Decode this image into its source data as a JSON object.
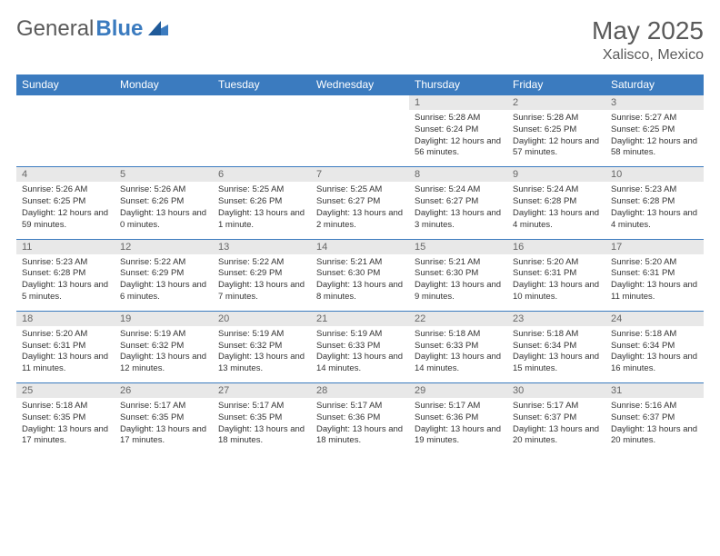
{
  "brand": {
    "part1": "General",
    "part2": "Blue"
  },
  "title": "May 2025",
  "location": "Xalisco, Mexico",
  "colors": {
    "header_bg": "#3b7bbf",
    "header_text": "#ffffff",
    "daynum_bg": "#e8e8e8",
    "border": "#3b7bbf",
    "text": "#333333",
    "muted": "#5a5a5a"
  },
  "day_names": [
    "Sunday",
    "Monday",
    "Tuesday",
    "Wednesday",
    "Thursday",
    "Friday",
    "Saturday"
  ],
  "weeks": [
    [
      {
        "n": "",
        "lines": []
      },
      {
        "n": "",
        "lines": []
      },
      {
        "n": "",
        "lines": []
      },
      {
        "n": "",
        "lines": []
      },
      {
        "n": "1",
        "lines": [
          "Sunrise: 5:28 AM",
          "Sunset: 6:24 PM",
          "Daylight: 12 hours and 56 minutes."
        ]
      },
      {
        "n": "2",
        "lines": [
          "Sunrise: 5:28 AM",
          "Sunset: 6:25 PM",
          "Daylight: 12 hours and 57 minutes."
        ]
      },
      {
        "n": "3",
        "lines": [
          "Sunrise: 5:27 AM",
          "Sunset: 6:25 PM",
          "Daylight: 12 hours and 58 minutes."
        ]
      }
    ],
    [
      {
        "n": "4",
        "lines": [
          "Sunrise: 5:26 AM",
          "Sunset: 6:25 PM",
          "Daylight: 12 hours and 59 minutes."
        ]
      },
      {
        "n": "5",
        "lines": [
          "Sunrise: 5:26 AM",
          "Sunset: 6:26 PM",
          "Daylight: 13 hours and 0 minutes."
        ]
      },
      {
        "n": "6",
        "lines": [
          "Sunrise: 5:25 AM",
          "Sunset: 6:26 PM",
          "Daylight: 13 hours and 1 minute."
        ]
      },
      {
        "n": "7",
        "lines": [
          "Sunrise: 5:25 AM",
          "Sunset: 6:27 PM",
          "Daylight: 13 hours and 2 minutes."
        ]
      },
      {
        "n": "8",
        "lines": [
          "Sunrise: 5:24 AM",
          "Sunset: 6:27 PM",
          "Daylight: 13 hours and 3 minutes."
        ]
      },
      {
        "n": "9",
        "lines": [
          "Sunrise: 5:24 AM",
          "Sunset: 6:28 PM",
          "Daylight: 13 hours and 4 minutes."
        ]
      },
      {
        "n": "10",
        "lines": [
          "Sunrise: 5:23 AM",
          "Sunset: 6:28 PM",
          "Daylight: 13 hours and 4 minutes."
        ]
      }
    ],
    [
      {
        "n": "11",
        "lines": [
          "Sunrise: 5:23 AM",
          "Sunset: 6:28 PM",
          "Daylight: 13 hours and 5 minutes."
        ]
      },
      {
        "n": "12",
        "lines": [
          "Sunrise: 5:22 AM",
          "Sunset: 6:29 PM",
          "Daylight: 13 hours and 6 minutes."
        ]
      },
      {
        "n": "13",
        "lines": [
          "Sunrise: 5:22 AM",
          "Sunset: 6:29 PM",
          "Daylight: 13 hours and 7 minutes."
        ]
      },
      {
        "n": "14",
        "lines": [
          "Sunrise: 5:21 AM",
          "Sunset: 6:30 PM",
          "Daylight: 13 hours and 8 minutes."
        ]
      },
      {
        "n": "15",
        "lines": [
          "Sunrise: 5:21 AM",
          "Sunset: 6:30 PM",
          "Daylight: 13 hours and 9 minutes."
        ]
      },
      {
        "n": "16",
        "lines": [
          "Sunrise: 5:20 AM",
          "Sunset: 6:31 PM",
          "Daylight: 13 hours and 10 minutes."
        ]
      },
      {
        "n": "17",
        "lines": [
          "Sunrise: 5:20 AM",
          "Sunset: 6:31 PM",
          "Daylight: 13 hours and 11 minutes."
        ]
      }
    ],
    [
      {
        "n": "18",
        "lines": [
          "Sunrise: 5:20 AM",
          "Sunset: 6:31 PM",
          "Daylight: 13 hours and 11 minutes."
        ]
      },
      {
        "n": "19",
        "lines": [
          "Sunrise: 5:19 AM",
          "Sunset: 6:32 PM",
          "Daylight: 13 hours and 12 minutes."
        ]
      },
      {
        "n": "20",
        "lines": [
          "Sunrise: 5:19 AM",
          "Sunset: 6:32 PM",
          "Daylight: 13 hours and 13 minutes."
        ]
      },
      {
        "n": "21",
        "lines": [
          "Sunrise: 5:19 AM",
          "Sunset: 6:33 PM",
          "Daylight: 13 hours and 14 minutes."
        ]
      },
      {
        "n": "22",
        "lines": [
          "Sunrise: 5:18 AM",
          "Sunset: 6:33 PM",
          "Daylight: 13 hours and 14 minutes."
        ]
      },
      {
        "n": "23",
        "lines": [
          "Sunrise: 5:18 AM",
          "Sunset: 6:34 PM",
          "Daylight: 13 hours and 15 minutes."
        ]
      },
      {
        "n": "24",
        "lines": [
          "Sunrise: 5:18 AM",
          "Sunset: 6:34 PM",
          "Daylight: 13 hours and 16 minutes."
        ]
      }
    ],
    [
      {
        "n": "25",
        "lines": [
          "Sunrise: 5:18 AM",
          "Sunset: 6:35 PM",
          "Daylight: 13 hours and 17 minutes."
        ]
      },
      {
        "n": "26",
        "lines": [
          "Sunrise: 5:17 AM",
          "Sunset: 6:35 PM",
          "Daylight: 13 hours and 17 minutes."
        ]
      },
      {
        "n": "27",
        "lines": [
          "Sunrise: 5:17 AM",
          "Sunset: 6:35 PM",
          "Daylight: 13 hours and 18 minutes."
        ]
      },
      {
        "n": "28",
        "lines": [
          "Sunrise: 5:17 AM",
          "Sunset: 6:36 PM",
          "Daylight: 13 hours and 18 minutes."
        ]
      },
      {
        "n": "29",
        "lines": [
          "Sunrise: 5:17 AM",
          "Sunset: 6:36 PM",
          "Daylight: 13 hours and 19 minutes."
        ]
      },
      {
        "n": "30",
        "lines": [
          "Sunrise: 5:17 AM",
          "Sunset: 6:37 PM",
          "Daylight: 13 hours and 20 minutes."
        ]
      },
      {
        "n": "31",
        "lines": [
          "Sunrise: 5:16 AM",
          "Sunset: 6:37 PM",
          "Daylight: 13 hours and 20 minutes."
        ]
      }
    ]
  ]
}
